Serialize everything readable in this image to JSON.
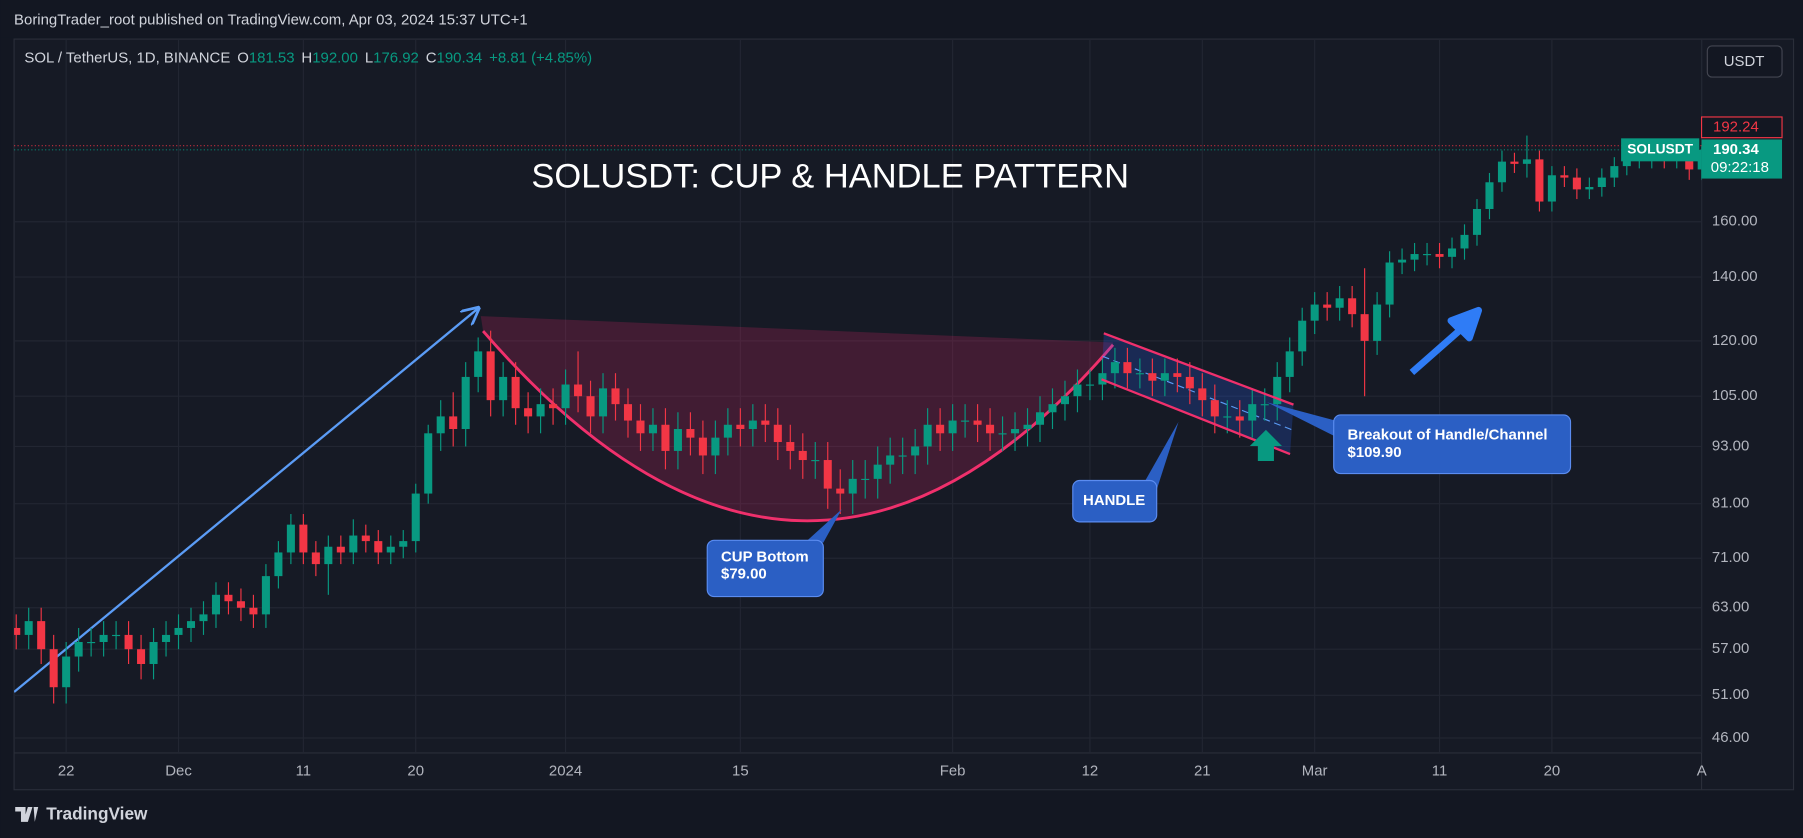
{
  "header": {
    "publisher": "BoringTrader_root published on TradingView.com, Apr 03, 2024 15:37 UTC+1",
    "symbol": "SOL / TetherUS, 1D, BINANCE",
    "legend": [
      {
        "key": "O",
        "text": "181.53"
      },
      {
        "key": "H",
        "text": "192.00"
      },
      {
        "key": "L",
        "text": "176.92"
      },
      {
        "key": "C",
        "text": "190.34"
      }
    ],
    "change": "+8.81 (+4.85%)",
    "currency": "USDT"
  },
  "footer": {
    "brand": "TradingView"
  },
  "chart_data": {
    "type": "candlestick",
    "title": "SOLUSDT: CUP & HANDLE PATTERN",
    "x": [
      "2023-11-18",
      "2023-11-19",
      "2023-11-20",
      "2023-11-21",
      "2023-11-22",
      "2023-11-23",
      "2023-11-24",
      "2023-11-25",
      "2023-11-26",
      "2023-11-27",
      "2023-11-28",
      "2023-11-29",
      "2023-11-30",
      "2023-12-01",
      "2023-12-02",
      "2023-12-03",
      "2023-12-04",
      "2023-12-05",
      "2023-12-06",
      "2023-12-07",
      "2023-12-08",
      "2023-12-09",
      "2023-12-10",
      "2023-12-11",
      "2023-12-12",
      "2023-12-13",
      "2023-12-14",
      "2023-12-15",
      "2023-12-16",
      "2023-12-17",
      "2023-12-18",
      "2023-12-19",
      "2023-12-20",
      "2023-12-21",
      "2023-12-22",
      "2023-12-23",
      "2023-12-24",
      "2023-12-25",
      "2023-12-26",
      "2023-12-27",
      "2023-12-28",
      "2023-12-29",
      "2023-12-30",
      "2023-12-31",
      "2024-01-01",
      "2024-01-02",
      "2024-01-03",
      "2024-01-04",
      "2024-01-05",
      "2024-01-06",
      "2024-01-07",
      "2024-01-08",
      "2024-01-09",
      "2024-01-10",
      "2024-01-11",
      "2024-01-12",
      "2024-01-13",
      "2024-01-14",
      "2024-01-15",
      "2024-01-16",
      "2024-01-17",
      "2024-01-18",
      "2024-01-19",
      "2024-01-20",
      "2024-01-21",
      "2024-01-22",
      "2024-01-23",
      "2024-01-24",
      "2024-01-25",
      "2024-01-26",
      "2024-01-27",
      "2024-01-28",
      "2024-01-29",
      "2024-01-30",
      "2024-01-31",
      "2024-02-01",
      "2024-02-02",
      "2024-02-03",
      "2024-02-04",
      "2024-02-05",
      "2024-02-06",
      "2024-02-07",
      "2024-02-08",
      "2024-02-09",
      "2024-02-10",
      "2024-02-11",
      "2024-02-12",
      "2024-02-13",
      "2024-02-14",
      "2024-02-15",
      "2024-02-16",
      "2024-02-17",
      "2024-02-18",
      "2024-02-19",
      "2024-02-20",
      "2024-02-21",
      "2024-02-22",
      "2024-02-23",
      "2024-02-24",
      "2024-02-25",
      "2024-02-26",
      "2024-02-27",
      "2024-02-28",
      "2024-02-29",
      "2024-03-01",
      "2024-03-02",
      "2024-03-03",
      "2024-03-04",
      "2024-03-05",
      "2024-03-06",
      "2024-03-07",
      "2024-03-08",
      "2024-03-09",
      "2024-03-10",
      "2024-03-11",
      "2024-03-12",
      "2024-03-13",
      "2024-03-14",
      "2024-03-15",
      "2024-03-16",
      "2024-03-17",
      "2024-03-18",
      "2024-03-19",
      "2024-03-20",
      "2024-03-21",
      "2024-03-22",
      "2024-03-23",
      "2024-03-24",
      "2024-03-25",
      "2024-03-26",
      "2024-03-27",
      "2024-03-28",
      "2024-03-29",
      "2024-03-30",
      "2024-03-31",
      "2024-04-01"
    ],
    "open": [
      60,
      59,
      61,
      57,
      52,
      56,
      58,
      58,
      59,
      59,
      57,
      55,
      58,
      59,
      60,
      61,
      62,
      65,
      64,
      63,
      62,
      68,
      72,
      77,
      72,
      70,
      73,
      72,
      75,
      74,
      72,
      73,
      74,
      83,
      96,
      100,
      97,
      110,
      117,
      104,
      110,
      102,
      100,
      103,
      102,
      108,
      105,
      100,
      107,
      103,
      99,
      96,
      98,
      92,
      97,
      95,
      91,
      95,
      98,
      97,
      99,
      98,
      94,
      92,
      90,
      90,
      84,
      83,
      86,
      86,
      89,
      91,
      91,
      93,
      98,
      96,
      99,
      99,
      98,
      96,
      96,
      97,
      98,
      101,
      103,
      105,
      108,
      108,
      111,
      114,
      111,
      111,
      109,
      111,
      110,
      107,
      104,
      100,
      100,
      99,
      103,
      103,
      110,
      117,
      126,
      131,
      130,
      133,
      128,
      120,
      131,
      145,
      146,
      148,
      148,
      147,
      150,
      155,
      165,
      176,
      185,
      184,
      186,
      168,
      179,
      178,
      173,
      174,
      178,
      183,
      186,
      186,
      188,
      186,
      186,
      181.53
    ],
    "high": [
      62,
      63,
      63,
      59,
      58,
      60,
      60,
      61,
      61,
      61,
      59,
      60,
      61,
      62,
      63,
      64,
      67,
      67,
      66,
      65,
      70,
      74,
      79,
      79,
      74,
      75,
      75,
      78,
      77,
      76,
      75,
      76,
      85,
      98,
      104,
      106,
      114,
      121,
      123,
      114,
      114,
      106,
      107,
      107,
      112,
      117,
      109,
      111,
      111,
      107,
      103,
      102,
      102,
      101,
      101,
      99,
      99,
      102,
      102,
      103,
      103,
      102,
      98,
      96,
      94,
      94,
      88,
      90,
      90,
      93,
      95,
      95,
      97,
      102,
      102,
      103,
      103,
      103,
      102,
      100,
      101,
      102,
      105,
      107,
      109,
      112,
      112,
      115,
      118,
      118,
      115,
      115,
      115,
      115,
      114,
      111,
      108,
      104,
      104,
      107,
      107,
      114,
      121,
      130,
      135,
      135,
      137,
      137,
      143,
      135,
      149,
      150,
      152,
      152,
      152,
      154,
      159,
      169,
      180,
      190,
      189,
      197,
      190,
      183,
      183,
      182,
      178,
      182,
      187,
      190,
      190,
      192,
      192,
      190,
      190,
      192
    ],
    "low": [
      57,
      57,
      55,
      50,
      50,
      54,
      56,
      56,
      57,
      55,
      53,
      53,
      56,
      57,
      58,
      59,
      60,
      62,
      61,
      60,
      60,
      66,
      70,
      70,
      68,
      65,
      70,
      70,
      72,
      70,
      70,
      71,
      72,
      81,
      92,
      93,
      93,
      106,
      100,
      100,
      98,
      96,
      96,
      98,
      98,
      101,
      96,
      96,
      99,
      95,
      92,
      92,
      88,
      88,
      91,
      87,
      87,
      91,
      93,
      93,
      94,
      90,
      88,
      86,
      86,
      80,
      79,
      79,
      82,
      82,
      85,
      87,
      87,
      89,
      92,
      92,
      95,
      94,
      92,
      92,
      92,
      93,
      94,
      97,
      99,
      101,
      104,
      104,
      107,
      107,
      107,
      105,
      105,
      106,
      103,
      100,
      96,
      96,
      95,
      95,
      99,
      99,
      106,
      113,
      122,
      126,
      126,
      124,
      105,
      116,
      127,
      141,
      142,
      144,
      143,
      143,
      146,
      151,
      161,
      172,
      180,
      178,
      164,
      164,
      174,
      169,
      169,
      170,
      174,
      179,
      182,
      182,
      182,
      182,
      177,
      176.92
    ],
    "close": [
      59,
      61,
      57,
      52,
      56,
      58,
      58,
      59,
      59,
      57,
      55,
      58,
      59,
      60,
      61,
      62,
      65,
      64,
      63,
      62,
      68,
      72,
      77,
      72,
      70,
      73,
      72,
      75,
      74,
      72,
      73,
      74,
      83,
      96,
      100,
      97,
      110,
      117,
      104,
      110,
      102,
      100,
      103,
      102,
      108,
      105,
      100,
      107,
      103,
      99,
      96,
      98,
      92,
      97,
      95,
      91,
      95,
      98,
      97,
      99,
      98,
      94,
      92,
      90,
      90,
      84,
      83,
      86,
      86,
      89,
      91,
      91,
      93,
      98,
      96,
      99,
      99,
      98,
      96,
      96,
      97,
      98,
      101,
      103,
      105,
      108,
      108,
      111,
      114,
      111,
      111,
      109,
      111,
      110,
      107,
      104,
      100,
      100,
      99,
      103,
      103,
      110,
      117,
      126,
      131,
      130,
      133,
      128,
      120,
      131,
      145,
      146,
      148,
      148,
      147,
      150,
      155,
      165,
      176,
      185,
      184,
      186,
      168,
      179,
      178,
      173,
      174,
      178,
      183,
      186,
      186,
      188,
      186,
      186,
      181.53,
      190.34
    ],
    "up_color": "#089981",
    "down_color": "#f23645",
    "xlim": [
      "2023-11-17",
      "2024-04-02"
    ],
    "xticks": [
      {
        "value": "2023-11-22",
        "label": "22"
      },
      {
        "value": "2023-12-01",
        "label": "Dec"
      },
      {
        "value": "2023-12-11",
        "label": "11"
      },
      {
        "value": "2023-12-20",
        "label": "20"
      },
      {
        "value": "2024-01-01",
        "label": "2024"
      },
      {
        "value": "2024-01-15",
        "label": "15"
      },
      {
        "value": "2024-02-01",
        "label": "Feb"
      },
      {
        "value": "2024-02-12",
        "label": "12"
      },
      {
        "value": "2024-02-21",
        "label": "21"
      },
      {
        "value": "2024-03-01",
        "label": "Mar"
      },
      {
        "value": "2024-03-11",
        "label": "11"
      },
      {
        "value": "2024-03-20",
        "label": "20"
      },
      {
        "value": "2024-04-01",
        "label": "A"
      }
    ],
    "ylim": [
      40.6,
      248
    ],
    "log_scale": true,
    "grid": true,
    "yticks": [
      {
        "value": 46,
        "label": "46.00"
      },
      {
        "value": 51,
        "label": "51.00"
      },
      {
        "value": 57,
        "label": "57.00"
      },
      {
        "value": 63,
        "label": "63.00"
      },
      {
        "value": 71,
        "label": "71.00"
      },
      {
        "value": 81,
        "label": "81.00"
      },
      {
        "value": 93,
        "label": "93.00"
      },
      {
        "value": 105,
        "label": "105.00"
      },
      {
        "value": 120,
        "label": "120.00"
      },
      {
        "value": 140,
        "label": "140.00"
      },
      {
        "value": 160,
        "label": "160.00"
      }
    ],
    "price_lines": [
      {
        "value": 192.24,
        "label": "192.24",
        "color": "#f23645"
      },
      {
        "value": 190.34,
        "label": "190.34",
        "name": "SOLUSDT",
        "countdown": "09:22:18",
        "color": "#089981"
      }
    ],
    "annotations": [
      {
        "lines": [
          "CUP Bottom",
          "$79.00"
        ]
      },
      {
        "lines": [
          "HANDLE"
        ]
      },
      {
        "lines": [
          "Breakout of Handle/Channel",
          "$109.90"
        ]
      }
    ]
  }
}
